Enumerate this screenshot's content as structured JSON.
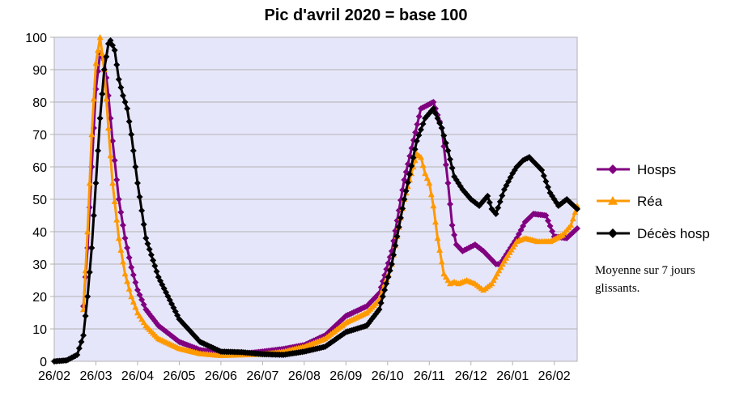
{
  "chart_data": {
    "type": "line",
    "title": "Pic d'avril 2020 = base 100",
    "xlabel": "",
    "ylabel": "",
    "ylim": [
      0,
      100
    ],
    "yticks": [
      0,
      10,
      20,
      30,
      40,
      50,
      60,
      70,
      80,
      90,
      100
    ],
    "x_tick_labels": [
      "26/02",
      "26/03",
      "26/04",
      "26/05",
      "26/06",
      "26/07",
      "26/08",
      "26/09",
      "26/10",
      "26/11",
      "26/12",
      "26/01",
      "26/02"
    ],
    "x_range_months": [
      0,
      12.55
    ],
    "grid": true,
    "plot_background": "#e6e6fa",
    "legend_position": "right",
    "series": [
      {
        "name": "Hosps",
        "color": "#800080",
        "marker": "diamond",
        "x": [
          0.7,
          0.8,
          0.9,
          1.0,
          1.1,
          1.2,
          1.3,
          1.4,
          1.55,
          1.7,
          1.85,
          2.0,
          2.2,
          2.5,
          3.0,
          3.5,
          4.0,
          4.5,
          5.0,
          5.5,
          6.0,
          6.5,
          7.0,
          7.5,
          7.8,
          8.1,
          8.4,
          8.8,
          9.1,
          9.3,
          9.45,
          9.55,
          9.65,
          9.8,
          9.95,
          10.1,
          10.3,
          10.6,
          10.7,
          10.9,
          11.1,
          11.3,
          11.5,
          11.8,
          12.0,
          12.3,
          12.55
        ],
        "y": [
          17,
          35,
          60,
          84,
          95,
          93,
          82,
          68,
          50,
          38,
          29,
          22,
          16,
          11,
          6,
          3.5,
          2.6,
          2.3,
          3.0,
          3.8,
          5.0,
          8.0,
          14.0,
          17.0,
          21.0,
          34.0,
          56.0,
          78.0,
          80.0,
          72.0,
          55.0,
          42.0,
          36.0,
          34.0,
          35.0,
          36.0,
          34.0,
          30.0,
          30.0,
          34.0,
          38.0,
          43.0,
          45.5,
          45.0,
          38.5,
          38.0,
          41.0
        ]
      },
      {
        "name": "Réa",
        "color": "#ff9900",
        "marker": "triangle",
        "x": [
          0.7,
          0.8,
          0.9,
          1.0,
          1.1,
          1.2,
          1.3,
          1.4,
          1.55,
          1.7,
          1.85,
          2.0,
          2.2,
          2.5,
          3.0,
          3.5,
          4.0,
          4.5,
          5.0,
          5.5,
          6.0,
          6.5,
          7.0,
          7.5,
          7.8,
          8.1,
          8.4,
          8.7,
          8.8,
          8.9,
          9.0,
          9.1,
          9.2,
          9.35,
          9.5,
          9.6,
          9.7,
          9.9,
          10.1,
          10.3,
          10.5,
          10.8,
          11.1,
          11.3,
          11.6,
          11.9,
          12.2,
          12.4,
          12.55
        ],
        "y": [
          16,
          40,
          70,
          92,
          100,
          90,
          72,
          55,
          38,
          27,
          20,
          15,
          11,
          7,
          4,
          2.4,
          1.8,
          2.0,
          2.2,
          3.0,
          4.5,
          7.0,
          12.0,
          15.0,
          19.0,
          30.0,
          50.0,
          64.0,
          63.0,
          58.0,
          55.0,
          48.0,
          38.0,
          27.0,
          24.0,
          24.5,
          24.0,
          25.0,
          24.0,
          22.0,
          24.0,
          31.0,
          37.0,
          38.0,
          37.0,
          37.0,
          39.0,
          42.0,
          48.0
        ]
      },
      {
        "name": "Décès hosp",
        "color": "#000000",
        "marker": "diamond",
        "x": [
          0.0,
          0.3,
          0.55,
          0.7,
          0.8,
          0.9,
          1.0,
          1.1,
          1.2,
          1.3,
          1.35,
          1.45,
          1.55,
          1.65,
          1.75,
          1.85,
          2.0,
          2.2,
          2.5,
          3.0,
          3.5,
          4.0,
          4.5,
          5.0,
          5.5,
          6.0,
          6.5,
          7.0,
          7.5,
          7.8,
          8.1,
          8.4,
          8.7,
          8.9,
          9.1,
          9.3,
          9.45,
          9.6,
          9.8,
          10.0,
          10.2,
          10.4,
          10.5,
          10.6,
          10.8,
          11.0,
          11.1,
          11.25,
          11.4,
          11.7,
          11.9,
          12.1,
          12.3,
          12.55
        ],
        "y": [
          0,
          0.3,
          2,
          8,
          20,
          35,
          55,
          75,
          90,
          98,
          99,
          96,
          87,
          82,
          78,
          70,
          55,
          38,
          26,
          13,
          6,
          3,
          2.8,
          2.2,
          2.0,
          3.0,
          4.5,
          9.0,
          11.0,
          16.0,
          30.0,
          50.0,
          68.0,
          75.0,
          78.0,
          72.0,
          65.0,
          57.0,
          53.0,
          50.0,
          48.0,
          51.0,
          47.0,
          45.5,
          53.0,
          58.0,
          60.0,
          62.0,
          63.0,
          59.0,
          52.0,
          48.0,
          50.0,
          47.0
        ]
      }
    ],
    "note": "Moyenne sur 7 jours glissants."
  }
}
